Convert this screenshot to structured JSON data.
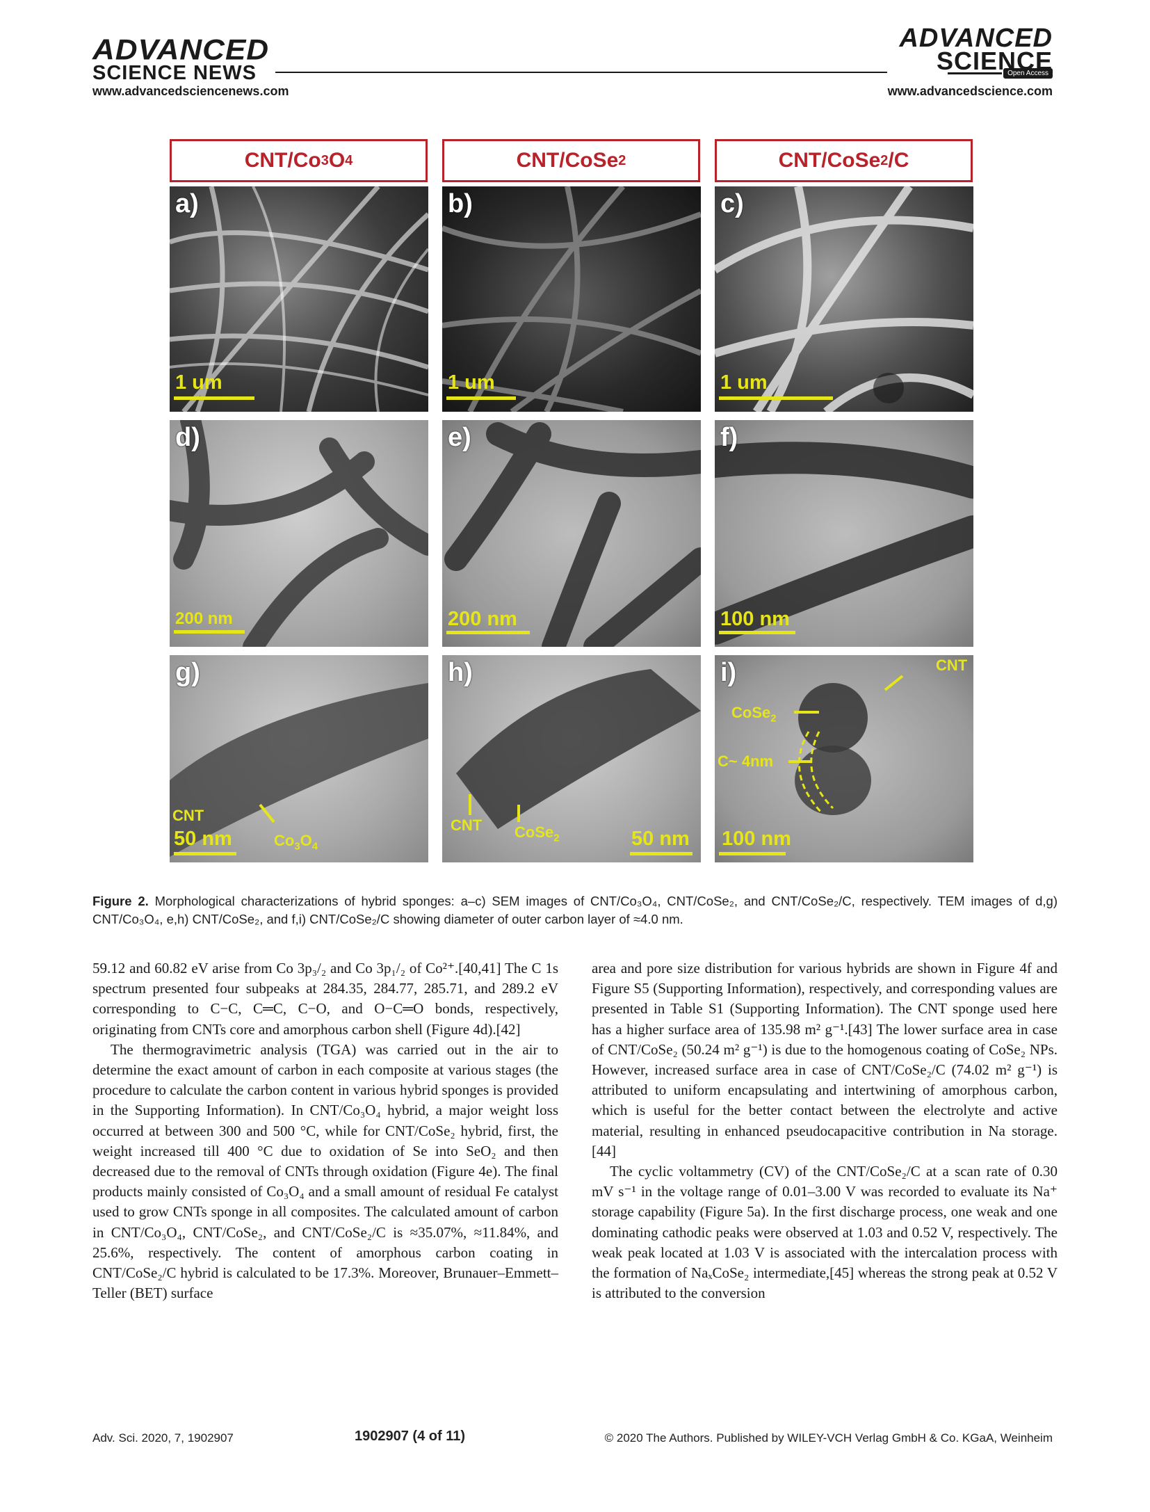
{
  "header": {
    "left_logo_top": "ADVANCED",
    "left_logo_bottom": "SCIENCE NEWS",
    "left_url": "www.advancedsciencenews.com",
    "right_logo_top": "ADVANCED",
    "right_logo_bottom": "SCIENCE",
    "open_access": "Open Access",
    "right_url": "www.advancedscience.com"
  },
  "figure": {
    "col_titles": [
      "CNT/Co3O4",
      "CNT/CoSe2",
      "CNT/CoSe2/C"
    ],
    "panels": [
      {
        "letter": "a)",
        "scale": "1 um"
      },
      {
        "letter": "b)",
        "scale": "1 um"
      },
      {
        "letter": "c)",
        "scale": "1 um"
      },
      {
        "letter": "d)",
        "scale": "200 nm"
      },
      {
        "letter": "e)",
        "scale": "200 nm"
      },
      {
        "letter": "f)",
        "scale": "100 nm"
      },
      {
        "letter": "g)",
        "scale": "50 nm"
      },
      {
        "letter": "h)",
        "scale": "50 nm"
      },
      {
        "letter": "i)",
        "scale": "100 nm"
      }
    ],
    "labels": {
      "g_cnt": "CNT",
      "g_co3o4": "Co3O4",
      "h_cnt": "CNT",
      "h_cose2": "CoSe2",
      "i_cnt": "CNT",
      "i_cose2": "CoSe2",
      "i_c": "C~ 4nm"
    }
  },
  "caption": {
    "label": "Figure 2.",
    "text": "Morphological characterizations of hybrid sponges: a–c) SEM images of CNT/Co₃O₄, CNT/CoSe₂, and CNT/CoSe₂/C, respectively. TEM images of d,g) CNT/Co₃O₄, e,h) CNT/CoSe₂, and f,i) CNT/CoSe₂/C showing diameter of outer carbon layer of ≈4.0 nm."
  },
  "body": {
    "left": [
      "59.12 and 60.82 eV arise from Co 3p₃/₂ and Co 3p₁/₂ of Co²⁺.[40,41] The C 1s spectrum presented four subpeaks at 284.35, 284.77, 285.71, and 289.2 eV corresponding to C−C, C═C, C−O, and O−C═O bonds, respectively, originating from CNTs core and amorphous carbon shell (Figure 4d).[42]",
      "The thermogravimetric analysis (TGA) was carried out in the air to determine the exact amount of carbon in each composite at various stages (the procedure to calculate the carbon content in various hybrid sponges is provided in the Supporting Information). In CNT/Co₃O₄ hybrid, a major weight loss occurred at between 300 and 500 °C, while for CNT/CoSe₂ hybrid, first, the weight increased till 400 °C due to oxidation of Se into SeO₂ and then decreased due to the removal of CNTs through oxidation (Figure 4e). The final products mainly consisted of Co₃O₄ and a small amount of residual Fe catalyst used to grow CNTs sponge in all composites. The calculated amount of carbon in CNT/Co₃O₄, CNT/CoSe₂, and CNT/CoSe₂/C is ≈35.07%, ≈11.84%, and 25.6%, respectively. The content of amorphous carbon coating in CNT/CoSe₂/C hybrid is calculated to be 17.3%. Moreover, Brunauer–Emmett–Teller (BET) surface"
    ],
    "right": [
      "area and pore size distribution for various hybrids are shown in Figure 4f and Figure S5 (Supporting Information), respectively, and corresponding values are presented in Table S1 (Supporting Information). The CNT sponge used here has a higher surface area of 135.98 m² g⁻¹.[43] The lower surface area in case of CNT/CoSe₂ (50.24 m² g⁻¹) is due to the homogenous coating of CoSe₂ NPs. However, increased surface area in case of CNT/CoSe₂/C (74.02 m² g⁻¹) is attributed to uniform encapsulating and intertwining of amorphous carbon, which is useful for the better contact between the electrolyte and active material, resulting in enhanced pseudocapacitive contribution in Na storage.[44]",
      "The cyclic voltammetry (CV) of the CNT/CoSe₂/C at a scan rate of 0.30 mV s⁻¹ in the voltage range of 0.01–3.00 V was recorded to evaluate its Na⁺ storage capability (Figure 5a). In the first discharge process, one weak and one dominating cathodic peaks were observed at 1.03 and 0.52 V, respectively. The weak peak located at 1.03 V is associated with the intercalation process with the formation of NaₓCoSe₂ intermediate,[45] whereas the strong peak at 0.52 V is attributed to the conversion"
    ]
  },
  "footer": {
    "left": "Adv. Sci. 2020, 7, 1902907",
    "center": "1902907  (4 of 11)",
    "right": "© 2020 The Authors. Published by WILEY-VCH Verlag GmbH & Co. KGaA, Weinheim"
  }
}
